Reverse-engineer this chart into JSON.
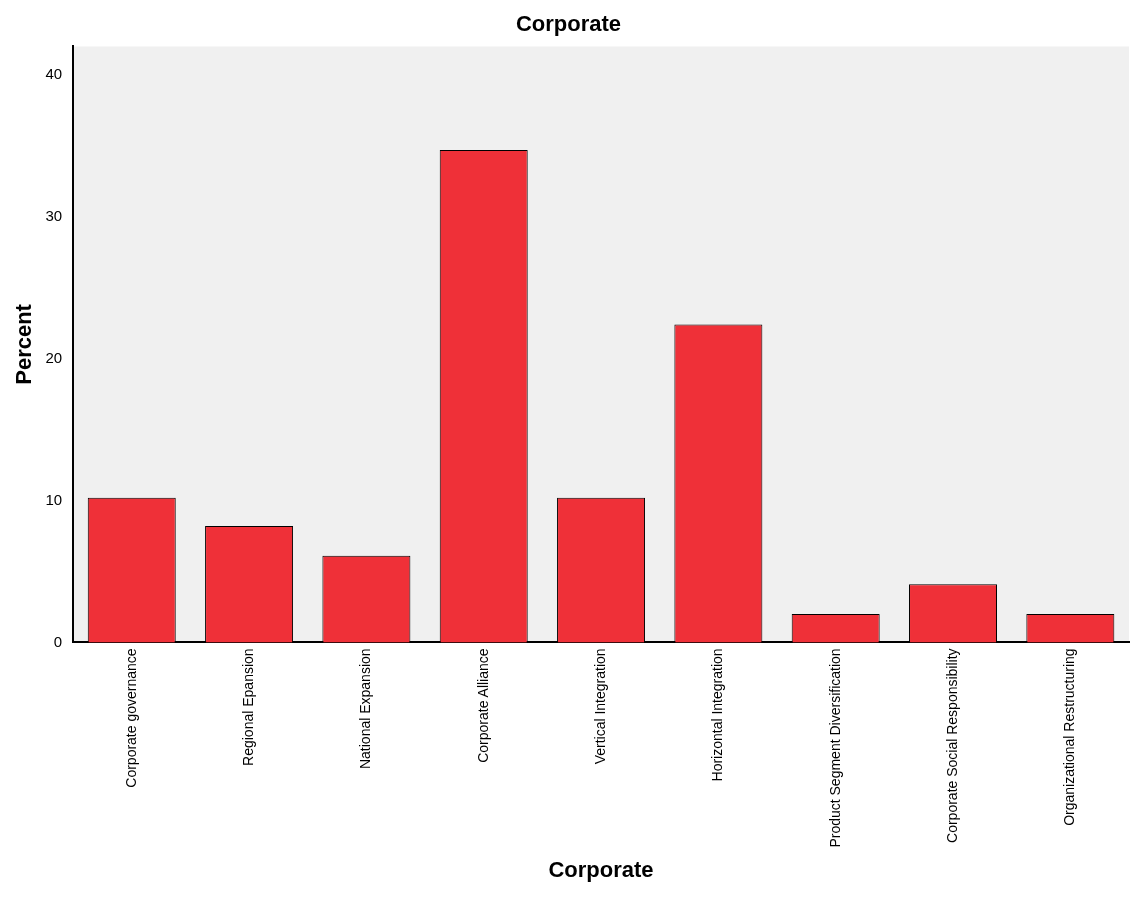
{
  "chart_data": {
    "type": "bar",
    "title": "Corporate",
    "xlabel": "Corporate",
    "ylabel": "Percent",
    "categories": [
      "Corporate governance",
      "Regional Epansion",
      "National Expansion",
      "Corporate Alliance",
      "Vertical Integration",
      "Horizontal Integration",
      "Product Segment Diversification",
      "Corporate Social Responsibility",
      "Organizational Restructuring"
    ],
    "values": [
      10.2,
      8.2,
      6.1,
      34.7,
      10.2,
      22.4,
      2.0,
      4.1,
      2.0
    ],
    "color": "#ef3038",
    "ylim": [
      0,
      42
    ],
    "yticks": [
      0,
      10,
      20,
      30,
      40
    ],
    "grid": false,
    "legend": false
  }
}
